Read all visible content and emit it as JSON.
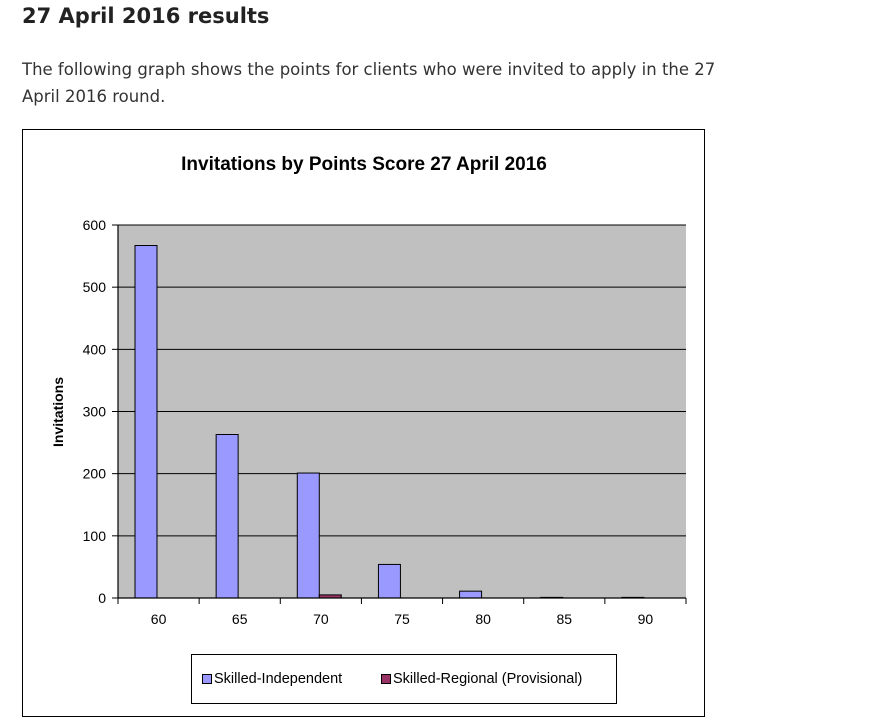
{
  "page": {
    "heading": "27 April 2016 results",
    "intro": "The following graph shows the points for clients who were invited to apply in the 27 April 2016 round."
  },
  "colors": {
    "plot_background": "#c0c0c0",
    "series_independent": "#9999ff",
    "series_regional": "#993366",
    "gridline": "#000000"
  },
  "chart_data": {
    "type": "bar",
    "title": "Invitations by Points Score 27 April 2016",
    "xlabel": "",
    "ylabel": "Invitations",
    "categories": [
      "60",
      "65",
      "70",
      "75",
      "80",
      "85",
      "90"
    ],
    "ylim": [
      0,
      600
    ],
    "yticks": [
      0,
      100,
      200,
      300,
      400,
      500,
      600
    ],
    "grid": true,
    "legend_position": "bottom",
    "series": [
      {
        "name": "Skilled-Independent",
        "values": [
          567,
          263,
          201,
          54,
          11,
          1,
          1
        ]
      },
      {
        "name": "Skilled-Regional (Provisional)",
        "values": [
          0,
          0,
          5,
          0,
          0,
          0,
          0
        ]
      }
    ]
  }
}
